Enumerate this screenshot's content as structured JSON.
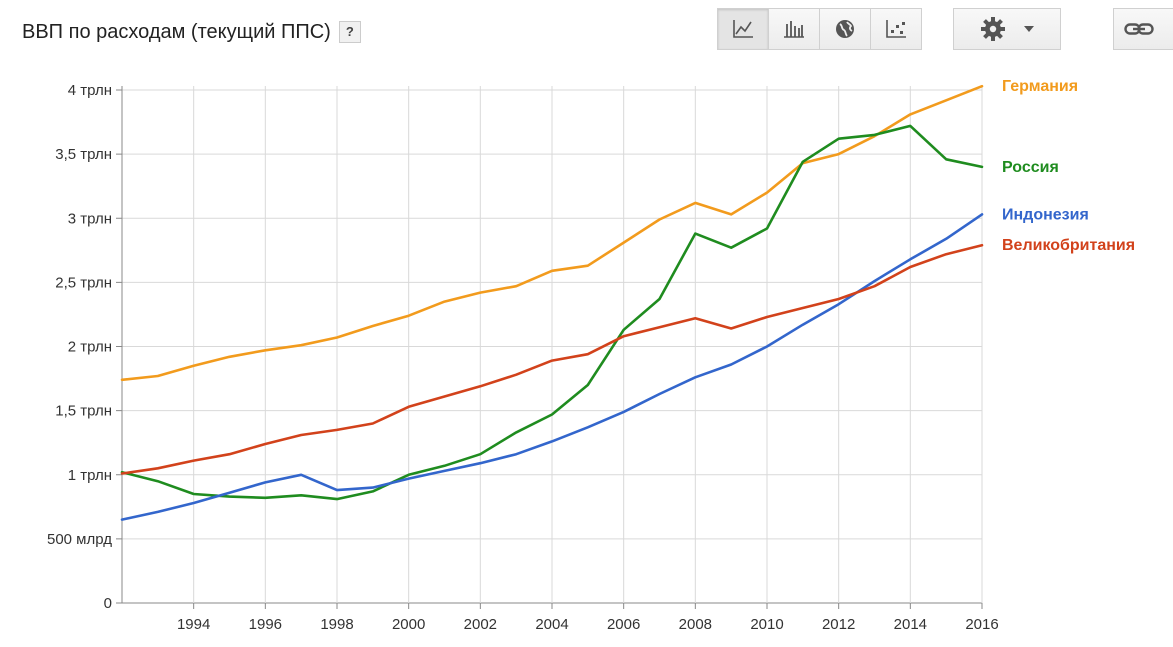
{
  "header": {
    "title": "ВВП по расходам (текущий ППС)",
    "help_label": "?"
  },
  "toolbar": {
    "buttons": [
      {
        "icon": "line-chart-icon",
        "active": true
      },
      {
        "icon": "bar-chart-icon",
        "active": false
      },
      {
        "icon": "globe-icon",
        "active": false
      },
      {
        "icon": "scatter-chart-icon",
        "active": false
      }
    ],
    "settings_icon": "gear-icon",
    "dropdown_icon": "caret-down-icon",
    "link_icon": "link-icon"
  },
  "chart_data": {
    "type": "line",
    "title": "ВВП по расходам (текущий ППС)",
    "xlabel": "",
    "ylabel": "",
    "x": [
      1992,
      1993,
      1994,
      1995,
      1996,
      1997,
      1998,
      1999,
      2000,
      2001,
      2002,
      2003,
      2004,
      2005,
      2006,
      2007,
      2008,
      2009,
      2010,
      2011,
      2012,
      2013,
      2014,
      2015,
      2016
    ],
    "xlim": [
      1992,
      2016
    ],
    "ylim": [
      0,
      4.0
    ],
    "x_ticks": [
      1994,
      1996,
      1998,
      2000,
      2002,
      2004,
      2006,
      2008,
      2010,
      2012,
      2014,
      2016
    ],
    "y_ticks": [
      {
        "value": 0,
        "label": "0"
      },
      {
        "value": 0.5,
        "label": "500 млрд"
      },
      {
        "value": 1.0,
        "label": "1 трлн"
      },
      {
        "value": 1.5,
        "label": "1,5 трлн"
      },
      {
        "value": 2.0,
        "label": "2 трлн"
      },
      {
        "value": 2.5,
        "label": "2,5 трлн"
      },
      {
        "value": 3.0,
        "label": "3 трлн"
      },
      {
        "value": 3.5,
        "label": "3,5 трлн"
      },
      {
        "value": 4.0,
        "label": "4 трлн"
      }
    ],
    "grid": true,
    "series": [
      {
        "name": "Германия",
        "color": "#f29b1d",
        "values": [
          1.74,
          1.77,
          1.85,
          1.92,
          1.97,
          2.01,
          2.07,
          2.16,
          2.24,
          2.35,
          2.42,
          2.47,
          2.59,
          2.63,
          2.81,
          2.99,
          3.12,
          3.03,
          3.2,
          3.43,
          3.5,
          3.64,
          3.81,
          3.92,
          4.03
        ]
      },
      {
        "name": "Россия",
        "color": "#1f8c1f",
        "values": [
          1.02,
          0.95,
          0.85,
          0.83,
          0.82,
          0.84,
          0.81,
          0.87,
          1.0,
          1.07,
          1.16,
          1.33,
          1.47,
          1.7,
          2.13,
          2.37,
          2.88,
          2.77,
          2.92,
          3.44,
          3.62,
          3.65,
          3.72,
          3.46,
          3.4
        ]
      },
      {
        "name": "Индонезия",
        "color": "#3366cc",
        "values": [
          0.65,
          0.71,
          0.78,
          0.86,
          0.94,
          1.0,
          0.88,
          0.9,
          0.97,
          1.03,
          1.09,
          1.16,
          1.26,
          1.37,
          1.49,
          1.63,
          1.76,
          1.86,
          2.0,
          2.17,
          2.33,
          2.51,
          2.68,
          2.84,
          3.03
        ]
      },
      {
        "name": "Великобритания",
        "color": "#d2421b",
        "values": [
          1.01,
          1.05,
          1.11,
          1.16,
          1.24,
          1.31,
          1.35,
          1.4,
          1.53,
          1.61,
          1.69,
          1.78,
          1.89,
          1.94,
          2.08,
          2.15,
          2.22,
          2.14,
          2.23,
          2.3,
          2.37,
          2.47,
          2.62,
          2.72,
          2.79
        ]
      }
    ]
  }
}
